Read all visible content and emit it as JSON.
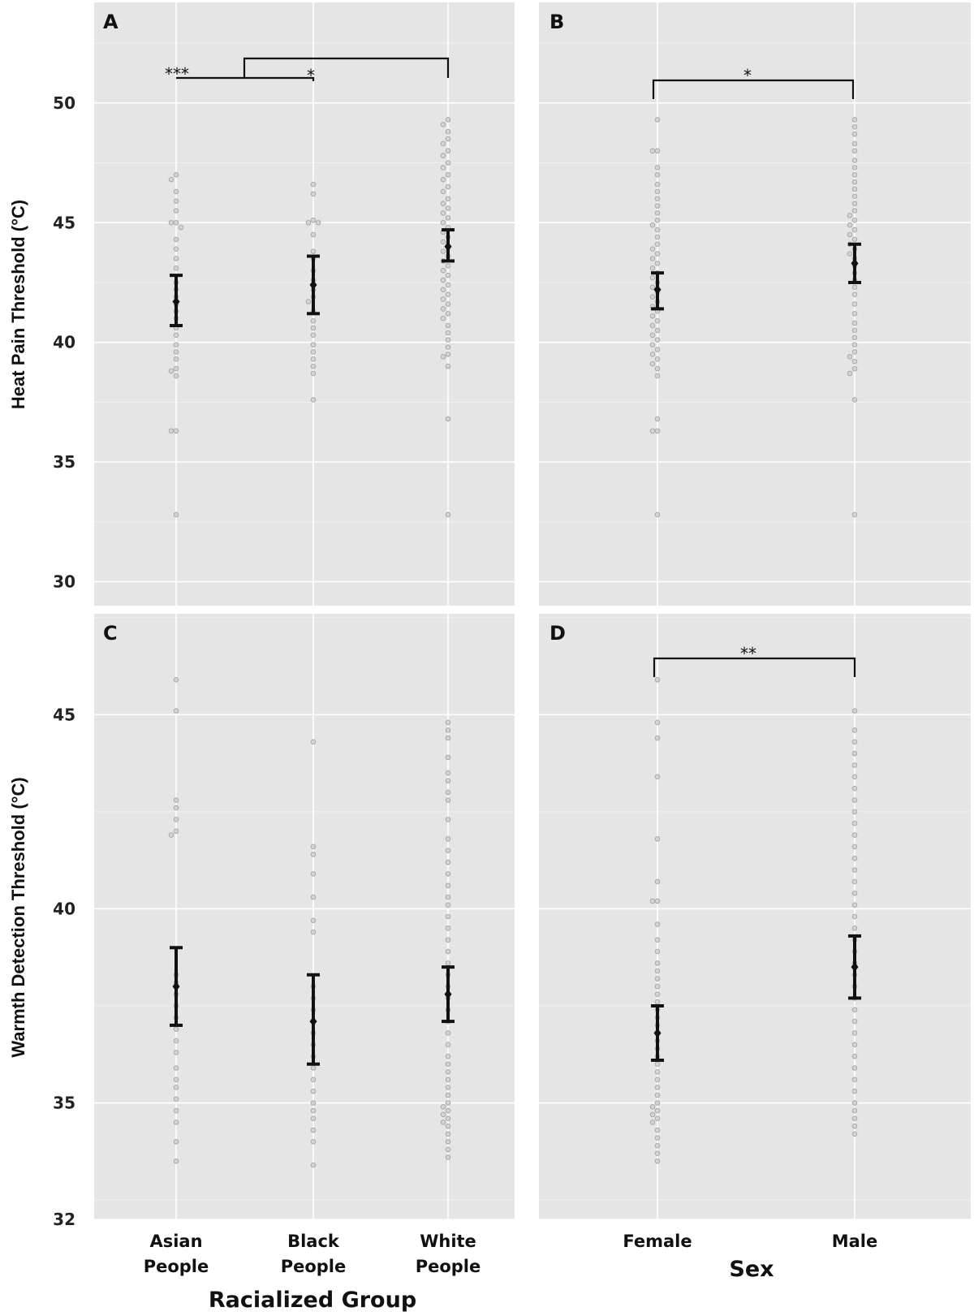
{
  "colors": {
    "panel_background": "#e5e5e5",
    "gridline": "#ffffff",
    "points": "#d4d4d4",
    "error_bar": "#111111"
  },
  "chart_data": [
    {
      "panel": "A",
      "type": "scatter",
      "ylabel": "Heat Pain Threshold (°C)",
      "ylim": [
        29,
        54.2
      ],
      "yticks": [
        30,
        35,
        40,
        45,
        50
      ],
      "categories": [
        "Asian\nPeople",
        "Black\nPeople",
        "White\nPeople"
      ],
      "means": [
        41.7,
        42.4,
        44.0
      ],
      "error_low": [
        40.7,
        41.2,
        43.4
      ],
      "error_high": [
        42.8,
        43.6,
        44.7
      ],
      "points": [
        [
          47.0,
          46.8,
          46.3,
          45.9,
          45.5,
          45.0,
          45.0,
          44.8,
          44.3,
          43.9,
          43.5,
          43.1,
          42.5,
          42.2,
          41.9,
          41.6,
          41.3,
          41.0,
          40.6,
          40.3,
          39.9,
          39.6,
          39.3,
          38.9,
          38.8,
          38.6,
          36.3,
          36.3,
          32.8
        ],
        [
          46.6,
          46.2,
          45.1,
          45.0,
          45.0,
          44.5,
          43.8,
          43.5,
          43.0,
          42.6,
          42.2,
          41.9,
          41.7,
          41.3,
          40.9,
          40.6,
          40.3,
          39.9,
          39.6,
          39.3,
          39.0,
          38.7,
          37.6
        ],
        [
          49.3,
          49.1,
          48.8,
          48.5,
          48.3,
          48.0,
          47.8,
          47.5,
          47.3,
          47.0,
          46.8,
          46.5,
          46.3,
          46.0,
          45.8,
          45.6,
          45.4,
          45.2,
          45.0,
          44.8,
          44.6,
          44.4,
          44.2,
          44.0,
          43.8,
          43.6,
          43.4,
          43.2,
          43.0,
          42.8,
          42.6,
          42.4,
          42.2,
          42.0,
          41.8,
          41.6,
          41.4,
          41.2,
          41.0,
          40.7,
          40.4,
          40.1,
          39.8,
          39.5,
          39.4,
          39.0,
          36.8,
          32.8
        ]
      ],
      "significance": [
        {
          "label": "***",
          "between": [
            "Asian People",
            "Black People"
          ]
        },
        {
          "label": "*",
          "between": [
            "Asian People",
            "Black People"
          ]
        },
        {
          "label": "",
          "between": [
            "Asian/Black People",
            "White People"
          ]
        }
      ]
    },
    {
      "panel": "B",
      "type": "scatter",
      "ylabel": "",
      "ylim": [
        29,
        54.2
      ],
      "yticks": [
        30,
        35,
        40,
        45,
        50
      ],
      "categories": [
        "Female",
        "Male"
      ],
      "means": [
        42.2,
        43.3
      ],
      "error_low": [
        41.4,
        42.5
      ],
      "error_high": [
        42.9,
        44.1
      ],
      "points": [
        [
          49.3,
          48.0,
          48.0,
          47.3,
          47.0,
          46.6,
          46.3,
          46.0,
          45.7,
          45.4,
          45.1,
          44.9,
          44.7,
          44.4,
          44.1,
          43.9,
          43.7,
          43.5,
          43.3,
          43.1,
          42.9,
          42.7,
          42.5,
          42.3,
          42.1,
          41.9,
          41.7,
          41.5,
          41.3,
          41.1,
          40.9,
          40.7,
          40.5,
          40.3,
          40.1,
          39.9,
          39.7,
          39.5,
          39.3,
          39.1,
          38.9,
          38.6,
          36.8,
          36.3,
          36.3,
          32.8
        ],
        [
          49.3,
          49.0,
          48.7,
          48.3,
          48.0,
          47.6,
          47.3,
          47.0,
          46.7,
          46.4,
          46.1,
          45.8,
          45.5,
          45.3,
          45.1,
          44.9,
          44.7,
          44.5,
          44.3,
          44.1,
          43.9,
          43.7,
          43.5,
          43.2,
          42.9,
          42.6,
          42.3,
          42.0,
          41.6,
          41.2,
          40.8,
          40.5,
          40.2,
          39.9,
          39.6,
          39.4,
          39.2,
          38.9,
          38.7,
          37.6,
          32.8
        ]
      ],
      "significance": [
        {
          "label": "*",
          "between": [
            "Female",
            "Male"
          ]
        }
      ]
    },
    {
      "panel": "C",
      "type": "scatter",
      "ylabel": "Warmth Detection Threshold (°C)",
      "ylim": [
        32,
        47.6
      ],
      "yticks": [
        32,
        35,
        40,
        45
      ],
      "categories": [
        "Asian\nPeople",
        "Black\nPeople",
        "White\nPeople"
      ],
      "means": [
        38.0,
        37.1,
        37.8
      ],
      "error_low": [
        37.0,
        36.0,
        37.1
      ],
      "error_high": [
        39.0,
        38.3,
        38.5
      ],
      "points": [
        [
          45.9,
          45.1,
          42.8,
          42.6,
          42.3,
          42.0,
          41.9,
          38.3,
          38.1,
          37.8,
          37.5,
          37.2,
          36.9,
          36.6,
          36.3,
          35.9,
          35.6,
          35.4,
          35.1,
          34.8,
          34.5,
          34.0,
          33.5
        ],
        [
          44.3,
          41.6,
          41.4,
          40.9,
          40.3,
          39.7,
          39.4,
          38.0,
          37.7,
          37.4,
          37.1,
          36.8,
          36.5,
          36.2,
          35.9,
          35.6,
          35.3,
          35.0,
          34.8,
          34.6,
          34.3,
          34.0,
          33.4
        ],
        [
          44.8,
          44.6,
          44.4,
          43.9,
          43.5,
          43.3,
          43.0,
          42.8,
          42.3,
          41.8,
          41.5,
          41.2,
          40.9,
          40.6,
          40.3,
          40.1,
          39.8,
          39.5,
          39.2,
          38.9,
          38.6,
          38.3,
          38.0,
          37.7,
          37.4,
          37.1,
          36.8,
          36.5,
          36.2,
          36.0,
          35.8,
          35.6,
          35.4,
          35.2,
          35.0,
          34.9,
          34.8,
          34.7,
          34.6,
          34.5,
          34.4,
          34.2,
          34.0,
          33.8,
          33.6
        ]
      ],
      "significance": []
    },
    {
      "panel": "D",
      "type": "scatter",
      "ylabel": "",
      "ylim": [
        32,
        47.6
      ],
      "yticks": [
        32,
        35,
        40,
        45
      ],
      "categories": [
        "Female",
        "Male"
      ],
      "means": [
        36.8,
        38.5
      ],
      "error_low": [
        36.1,
        37.7
      ],
      "error_high": [
        37.5,
        39.3
      ],
      "points": [
        [
          45.9,
          44.8,
          44.4,
          43.4,
          41.8,
          40.7,
          40.2,
          40.2,
          39.6,
          39.2,
          38.9,
          38.6,
          38.4,
          38.2,
          38.0,
          37.8,
          37.6,
          37.4,
          37.2,
          37.0,
          36.8,
          36.6,
          36.4,
          36.2,
          36.0,
          35.8,
          35.6,
          35.4,
          35.2,
          35.0,
          34.9,
          34.8,
          34.7,
          34.6,
          34.5,
          34.3,
          34.1,
          33.9,
          33.7,
          33.5
        ],
        [
          45.1,
          44.6,
          44.3,
          44.0,
          43.7,
          43.4,
          43.1,
          42.8,
          42.5,
          42.2,
          41.9,
          41.6,
          41.3,
          41.0,
          40.7,
          40.4,
          40.1,
          39.8,
          39.5,
          39.2,
          38.9,
          38.6,
          38.3,
          38.0,
          37.7,
          37.4,
          37.1,
          36.8,
          36.5,
          36.2,
          35.9,
          35.6,
          35.3,
          35.0,
          34.8,
          34.6,
          34.4,
          34.2
        ]
      ],
      "significance": [
        {
          "label": "**",
          "between": [
            "Female",
            "Male"
          ]
        }
      ]
    }
  ],
  "x_titles": {
    "left": "Racialized Group",
    "right": "Sex"
  }
}
